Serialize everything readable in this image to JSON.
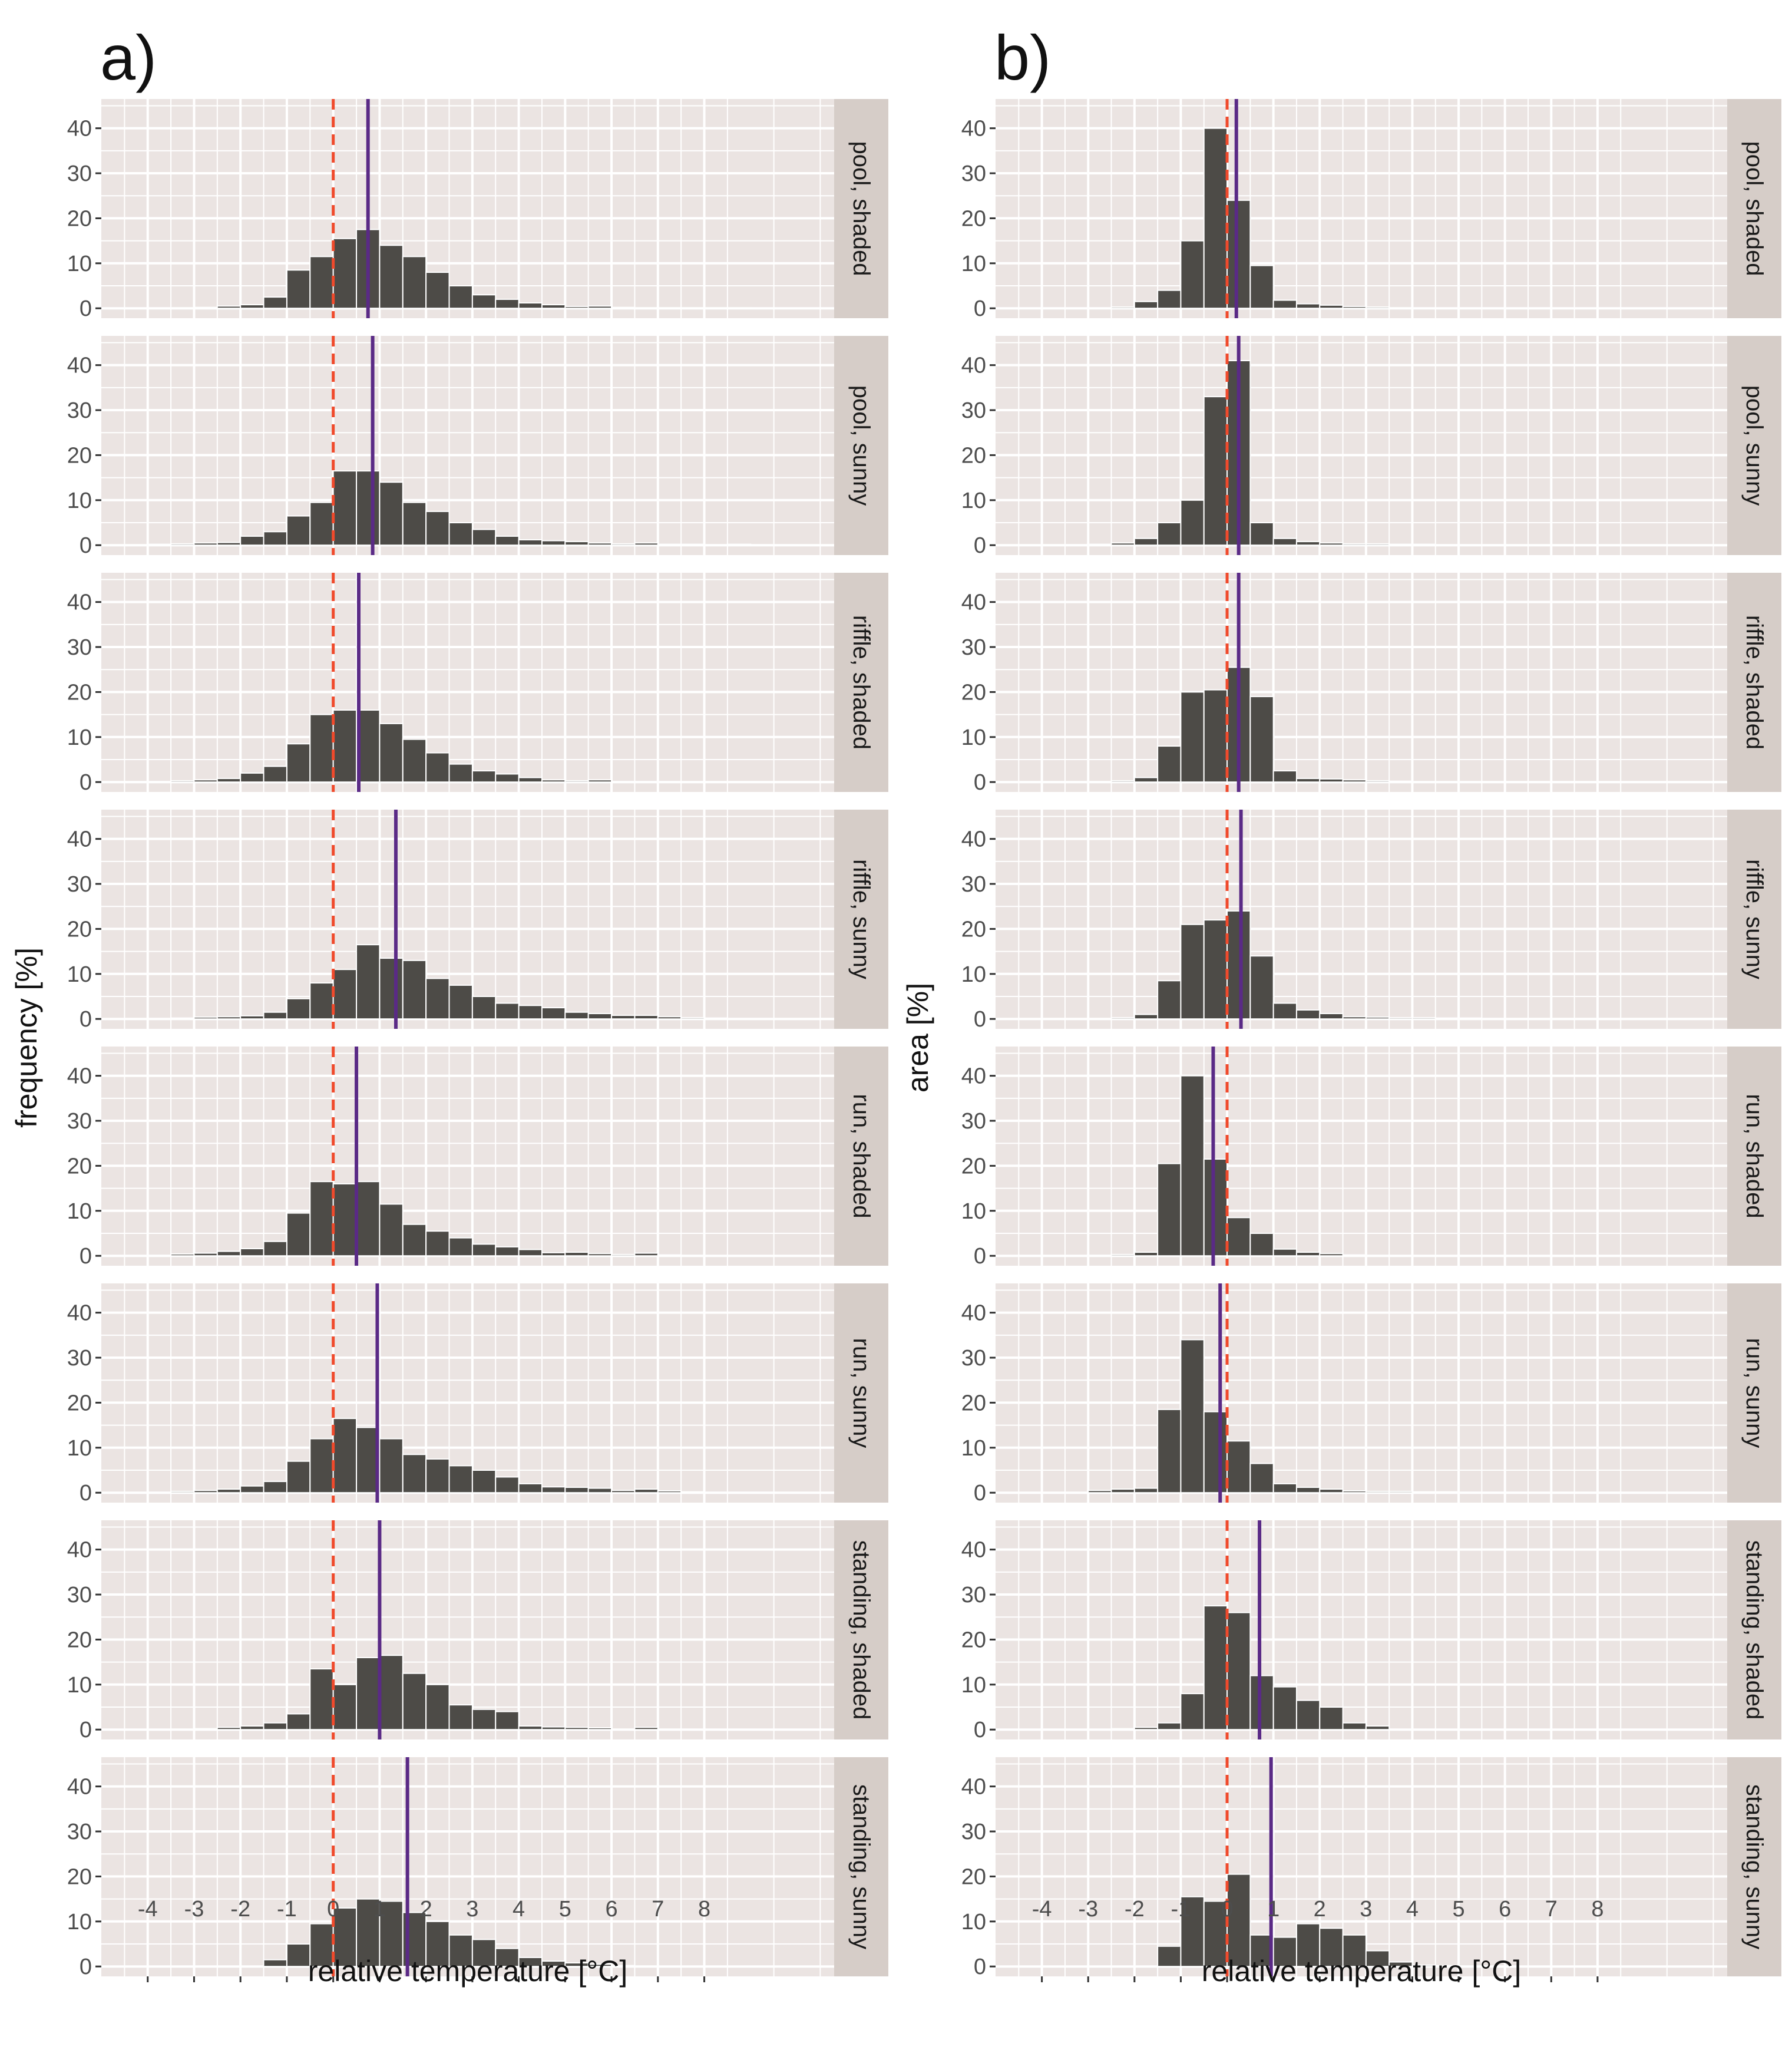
{
  "figure": {
    "panel_labels": [
      "a)",
      "b)"
    ]
  },
  "colors": {
    "panel_background": "#ebe4e2",
    "grid": "#ffffff",
    "bar": "#4d4b47",
    "strip": "#d6cdc8",
    "dashed_zero_line": "#f04a2c",
    "mean_line": "#5a2a86",
    "axis_text": "#4d4d4d"
  },
  "chart_data": [
    {
      "type": "bar",
      "panel_label": "a)",
      "xlabel": "relative temperature [°C]",
      "ylabel": "frequency [%]",
      "xlim": [
        -5,
        10.8
      ],
      "ylim": [
        -2.2,
        46.5
      ],
      "x_ticks": [
        -4,
        -3,
        -2,
        -1,
        0,
        1,
        2,
        3,
        4,
        5,
        6,
        7,
        8
      ],
      "y_ticks": [
        0,
        10,
        20,
        30,
        40
      ],
      "grid": true,
      "bin_width": 0.5,
      "bin_centers": [
        -4.75,
        -4.25,
        -3.75,
        -3.25,
        -2.75,
        -2.25,
        -1.75,
        -1.25,
        -0.75,
        -0.25,
        0.25,
        0.75,
        1.25,
        1.75,
        2.25,
        2.75,
        3.25,
        3.75,
        4.25,
        4.75,
        5.25,
        5.75,
        6.25,
        6.75,
        7.25,
        7.75,
        8.25,
        8.75,
        9.25,
        9.75
      ],
      "dashed_reference_x": 0,
      "facets": [
        {
          "label": "pool, shaded",
          "mean": 0.75,
          "values": [
            0,
            0,
            0,
            0.1,
            0.2,
            0.5,
            0.8,
            2.5,
            8.5,
            11.5,
            15.5,
            17.5,
            14,
            11.5,
            8,
            5,
            3,
            2,
            1.2,
            0.8,
            0.4,
            0.5,
            0.2,
            0.1,
            0.1,
            0.1,
            0.1,
            0.1,
            0,
            0
          ]
        },
        {
          "label": "pool, sunny",
          "mean": 0.85,
          "values": [
            0,
            0,
            0.2,
            0.3,
            0.5,
            0.6,
            2,
            3,
            6.5,
            9.5,
            16.5,
            16.5,
            14,
            9.5,
            7.5,
            5,
            3.5,
            2,
            1.2,
            1,
            0.8,
            0.5,
            0.3,
            0.5,
            0.2,
            0.2,
            0.1,
            0.2,
            0.1,
            0.1
          ]
        },
        {
          "label": "riffle, shaded",
          "mean": 0.55,
          "values": [
            0,
            0,
            0.1,
            0.3,
            0.5,
            0.8,
            2,
            3.5,
            8.5,
            15,
            16,
            16,
            13,
            9.5,
            6.5,
            4,
            2.5,
            1.8,
            1,
            0.5,
            0.3,
            0.5,
            0.1,
            0.1,
            0.1,
            0,
            0,
            0,
            0,
            0
          ]
        },
        {
          "label": "riffle, sunny",
          "mean": 1.35,
          "values": [
            0,
            0,
            0.1,
            0.2,
            0.4,
            0.5,
            0.7,
            1.5,
            4.5,
            8,
            11,
            16.5,
            13.5,
            13,
            9,
            7.5,
            5,
            3.5,
            3,
            2.5,
            1.5,
            1.2,
            0.8,
            0.8,
            0.5,
            0.3,
            0.2,
            0.1,
            0.1,
            0
          ]
        },
        {
          "label": "run, shaded",
          "mean": 0.5,
          "values": [
            0,
            0,
            0.1,
            0.4,
            0.6,
            1,
            1.6,
            3.2,
            9.5,
            16.5,
            16,
            16.5,
            11.5,
            7,
            5.5,
            4,
            2.6,
            2,
            1.4,
            0.7,
            0.8,
            0.5,
            0.3,
            0.6,
            0.2,
            0.1,
            0,
            0,
            0,
            0
          ]
        },
        {
          "label": "run, sunny",
          "mean": 0.95,
          "values": [
            0,
            0,
            0.1,
            0.3,
            0.5,
            0.8,
            1.5,
            2.5,
            7,
            12,
            16.5,
            14.5,
            12,
            8.5,
            7.5,
            6,
            5,
            3.5,
            2,
            1.3,
            1.2,
            1,
            0.5,
            0.8,
            0.4,
            0.2,
            0.1,
            0.1,
            0.1,
            0
          ]
        },
        {
          "label": "standing, shaded",
          "mean": 1.0,
          "values": [
            0,
            0,
            0,
            0.1,
            0.2,
            0.5,
            0.8,
            1.5,
            3.5,
            13.5,
            10,
            16,
            16.5,
            12.5,
            10,
            5.5,
            4.5,
            4,
            0.8,
            0.6,
            0.5,
            0.4,
            0.1,
            0.5,
            0.1,
            0,
            0,
            0,
            0,
            0
          ]
        },
        {
          "label": "standing, sunny",
          "mean": 1.6,
          "values": [
            0,
            0,
            0,
            0,
            0,
            0,
            0,
            1.5,
            5,
            9.5,
            13,
            15,
            14.5,
            12,
            10,
            7,
            6,
            4,
            2,
            1.2,
            0.8,
            0.5,
            0.2,
            0.1,
            0,
            0,
            0,
            0,
            0,
            0
          ]
        }
      ]
    },
    {
      "type": "bar",
      "panel_label": "b)",
      "xlabel": "relative temperature [°C]",
      "ylabel": "area [%]",
      "xlim": [
        -5,
        10.8
      ],
      "ylim": [
        -2.2,
        46.5
      ],
      "x_ticks": [
        -4,
        -3,
        -2,
        -1,
        0,
        1,
        2,
        3,
        4,
        5,
        6,
        7,
        8
      ],
      "y_ticks": [
        0,
        10,
        20,
        30,
        40
      ],
      "grid": true,
      "bin_width": 0.5,
      "bin_centers": [
        -4.75,
        -4.25,
        -3.75,
        -3.25,
        -2.75,
        -2.25,
        -1.75,
        -1.25,
        -0.75,
        -0.25,
        0.25,
        0.75,
        1.25,
        1.75,
        2.25,
        2.75,
        3.25,
        3.75,
        4.25,
        4.75,
        5.25,
        5.75,
        6.25,
        6.75,
        7.25,
        7.75,
        8.25,
        8.75,
        9.25,
        9.75
      ],
      "dashed_reference_x": 0,
      "facets": [
        {
          "label": "pool, shaded",
          "mean": 0.2,
          "values": [
            0,
            0,
            0,
            0,
            0,
            0.3,
            1.5,
            4,
            15,
            40,
            24,
            9.5,
            1.8,
            1,
            0.7,
            0.4,
            0.3,
            0.1,
            0,
            0,
            0,
            0,
            0,
            0,
            0,
            0,
            0,
            0,
            0,
            0
          ]
        },
        {
          "label": "pool, sunny",
          "mean": 0.25,
          "values": [
            0,
            0,
            0,
            0.1,
            0.2,
            0.5,
            1.5,
            5,
            10,
            33,
            41,
            5,
            1.5,
            0.8,
            0.5,
            0.3,
            0.3,
            0.2,
            0.2,
            0.1,
            0.1,
            0.1,
            0,
            0,
            0,
            0,
            0,
            0,
            0,
            0
          ]
        },
        {
          "label": "riffle, shaded",
          "mean": 0.25,
          "values": [
            0,
            0,
            0,
            0,
            0,
            0.3,
            1,
            8,
            20,
            20.5,
            25.5,
            19,
            2.5,
            0.8,
            0.7,
            0.5,
            0.3,
            0.2,
            0,
            0,
            0,
            0,
            0,
            0,
            0,
            0,
            0,
            0,
            0,
            0
          ]
        },
        {
          "label": "riffle, sunny",
          "mean": 0.3,
          "values": [
            0,
            0,
            0,
            0,
            0,
            0.3,
            1,
            8.5,
            21,
            22,
            24,
            14,
            3.5,
            2,
            1.2,
            0.5,
            0.4,
            0.3,
            0.3,
            0.2,
            0.2,
            0.1,
            0,
            0,
            0,
            0,
            0,
            0,
            0,
            0
          ]
        },
        {
          "label": "run, shaded",
          "mean": -0.3,
          "values": [
            0,
            0,
            0,
            0,
            0.1,
            0.3,
            0.8,
            20.5,
            40,
            21.5,
            8.5,
            5,
            1.5,
            0.8,
            0.5,
            0.2,
            0.1,
            0,
            0,
            0,
            0,
            0,
            0,
            0,
            0,
            0,
            0,
            0,
            0,
            0
          ]
        },
        {
          "label": "run, sunny",
          "mean": -0.15,
          "values": [
            0,
            0,
            0,
            0,
            0.5,
            0.8,
            1,
            18.5,
            34,
            18,
            11.5,
            6.5,
            2,
            1.2,
            0.8,
            0.4,
            0.3,
            0.3,
            0.2,
            0.2,
            0.1,
            0.1,
            0.1,
            0,
            0,
            0,
            0,
            0,
            0,
            0
          ]
        },
        {
          "label": "standing, shaded",
          "mean": 0.7,
          "values": [
            0,
            0,
            0,
            0,
            0,
            0.2,
            0.5,
            1.5,
            8,
            27.5,
            26,
            12,
            9.5,
            6.5,
            5,
            1.5,
            0.8,
            0,
            0,
            0,
            0,
            0,
            0,
            0,
            0,
            0,
            0,
            0,
            0,
            0
          ]
        },
        {
          "label": "standing, sunny",
          "mean": 0.95,
          "values": [
            0,
            0,
            0,
            0,
            0,
            0,
            0,
            4.5,
            15.5,
            14.5,
            20.5,
            7,
            6.5,
            9.5,
            8.5,
            7,
            3.5,
            1,
            0.3,
            0.2,
            0.1,
            0,
            0,
            0,
            0,
            0,
            0,
            0,
            0,
            0
          ]
        }
      ]
    }
  ]
}
